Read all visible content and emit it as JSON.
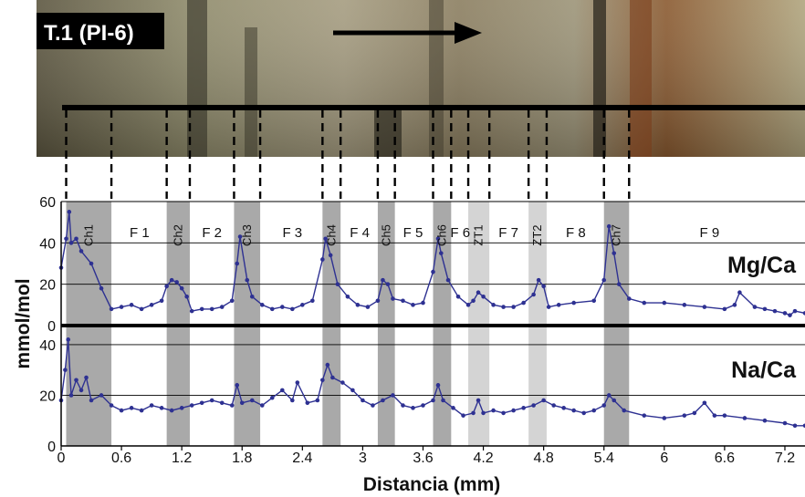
{
  "photo": {
    "label": "T.1 (PI-6)"
  },
  "chart_data": {
    "type": "line",
    "xlabel": "Distancia (mm)",
    "ylabel": "mmol/mol",
    "xlim": [
      0,
      7.4
    ],
    "x_ticks": [
      "0",
      "0.6",
      "1.2",
      "1.8",
      "2.4",
      "3",
      "3.6",
      "4.2",
      "4.8",
      "5.4",
      "6",
      "6.6",
      "7.2"
    ],
    "x_tick_values": [
      0,
      0.6,
      1.2,
      1.8,
      2.4,
      3.0,
      3.6,
      4.2,
      4.8,
      5.4,
      6.0,
      6.6,
      7.2
    ],
    "panels": [
      {
        "name": "Mg/Ca",
        "ylim": [
          0,
          60
        ],
        "y_ticks": [
          "0",
          "20",
          "40",
          "60"
        ],
        "y_tick_values": [
          0,
          20,
          40,
          60
        ]
      },
      {
        "name": "Na/Ca",
        "ylim": [
          0,
          45
        ],
        "y_ticks": [
          "0",
          "20",
          "40"
        ],
        "y_tick_values": [
          0,
          20,
          40
        ]
      }
    ],
    "zones": [
      {
        "label": "Ch1",
        "x0": 0.05,
        "x1": 0.5,
        "shade": "dark"
      },
      {
        "label": "Ch2",
        "x0": 1.05,
        "x1": 1.28,
        "shade": "dark"
      },
      {
        "label": "Ch3",
        "x0": 1.72,
        "x1": 1.98,
        "shade": "dark"
      },
      {
        "label": "Ch4",
        "x0": 2.6,
        "x1": 2.78,
        "shade": "dark"
      },
      {
        "label": "Ch5",
        "x0": 3.15,
        "x1": 3.32,
        "shade": "dark"
      },
      {
        "label": "Ch6",
        "x0": 3.7,
        "x1": 3.88,
        "shade": "dark"
      },
      {
        "label": "ZT1",
        "x0": 4.05,
        "x1": 4.26,
        "shade": "light"
      },
      {
        "label": "ZT2",
        "x0": 4.65,
        "x1": 4.83,
        "shade": "light"
      },
      {
        "label": "Ch7",
        "x0": 5.4,
        "x1": 5.65,
        "shade": "dark"
      }
    ],
    "facies": [
      {
        "label": "F 1",
        "x": 0.78
      },
      {
        "label": "F 2",
        "x": 1.5
      },
      {
        "label": "F 3",
        "x": 2.3
      },
      {
        "label": "F 4",
        "x": 2.97
      },
      {
        "label": "F 5",
        "x": 3.5
      },
      {
        "label": "F 6",
        "x": 3.97
      },
      {
        "label": "F 7",
        "x": 4.45
      },
      {
        "label": "F 8",
        "x": 5.12
      },
      {
        "label": "F 9",
        "x": 6.45
      }
    ],
    "series": [
      {
        "name": "Mg/Ca",
        "x": [
          0.0,
          0.05,
          0.08,
          0.1,
          0.15,
          0.2,
          0.3,
          0.4,
          0.5,
          0.6,
          0.7,
          0.8,
          0.9,
          1.0,
          1.05,
          1.1,
          1.15,
          1.2,
          1.25,
          1.3,
          1.4,
          1.5,
          1.6,
          1.7,
          1.75,
          1.78,
          1.85,
          1.9,
          2.0,
          2.1,
          2.2,
          2.3,
          2.4,
          2.5,
          2.6,
          2.63,
          2.68,
          2.75,
          2.85,
          2.95,
          3.05,
          3.15,
          3.2,
          3.25,
          3.3,
          3.4,
          3.5,
          3.6,
          3.7,
          3.75,
          3.78,
          3.85,
          3.95,
          4.05,
          4.1,
          4.15,
          4.2,
          4.3,
          4.4,
          4.5,
          4.6,
          4.7,
          4.75,
          4.8,
          4.85,
          4.95,
          5.1,
          5.3,
          5.4,
          5.45,
          5.5,
          5.55,
          5.65,
          5.8,
          6.0,
          6.2,
          6.4,
          6.6,
          6.7,
          6.75,
          6.9,
          7.0,
          7.1,
          7.2,
          7.25,
          7.3,
          7.4
        ],
        "values": [
          28,
          42,
          55,
          40,
          42,
          36,
          30,
          18,
          8,
          9,
          10,
          8,
          10,
          12,
          19,
          22,
          21,
          18,
          14,
          7,
          8,
          8,
          9,
          12,
          30,
          43,
          22,
          14,
          10,
          8,
          9,
          8,
          10,
          12,
          32,
          42,
          34,
          20,
          14,
          10,
          9,
          12,
          22,
          20,
          13,
          12,
          10,
          11,
          26,
          42,
          35,
          22,
          14,
          10,
          12,
          16,
          14,
          10,
          9,
          9,
          11,
          15,
          22,
          19,
          9,
          10,
          11,
          12,
          22,
          48,
          35,
          20,
          13,
          11,
          11,
          10,
          9,
          8,
          10,
          16,
          9,
          8,
          7,
          6,
          5,
          7,
          6
        ]
      },
      {
        "name": "Na/Ca",
        "x": [
          0.0,
          0.04,
          0.07,
          0.1,
          0.15,
          0.2,
          0.25,
          0.3,
          0.4,
          0.5,
          0.6,
          0.7,
          0.8,
          0.9,
          1.0,
          1.1,
          1.2,
          1.3,
          1.4,
          1.5,
          1.6,
          1.7,
          1.75,
          1.8,
          1.9,
          2.0,
          2.1,
          2.2,
          2.3,
          2.35,
          2.45,
          2.55,
          2.6,
          2.65,
          2.7,
          2.8,
          2.9,
          3.0,
          3.1,
          3.2,
          3.3,
          3.4,
          3.5,
          3.6,
          3.7,
          3.75,
          3.8,
          3.9,
          4.0,
          4.1,
          4.15,
          4.2,
          4.3,
          4.4,
          4.5,
          4.6,
          4.7,
          4.8,
          4.9,
          5.0,
          5.1,
          5.2,
          5.3,
          5.4,
          5.45,
          5.5,
          5.6,
          5.8,
          6.0,
          6.2,
          6.3,
          6.4,
          6.5,
          6.6,
          6.8,
          7.0,
          7.2,
          7.3,
          7.4
        ],
        "values": [
          18,
          30,
          42,
          20,
          26,
          22,
          27,
          18,
          20,
          16,
          14,
          15,
          14,
          16,
          15,
          14,
          15,
          16,
          17,
          18,
          17,
          16,
          24,
          17,
          18,
          16,
          19,
          22,
          18,
          25,
          17,
          18,
          26,
          32,
          27,
          25,
          22,
          18,
          16,
          18,
          20,
          16,
          15,
          16,
          18,
          24,
          18,
          15,
          12,
          13,
          18,
          13,
          14,
          13,
          14,
          15,
          16,
          18,
          16,
          15,
          14,
          13,
          14,
          16,
          20,
          18,
          14,
          12,
          11,
          12,
          13,
          17,
          12,
          12,
          11,
          10,
          9,
          8,
          8
        ]
      }
    ]
  }
}
